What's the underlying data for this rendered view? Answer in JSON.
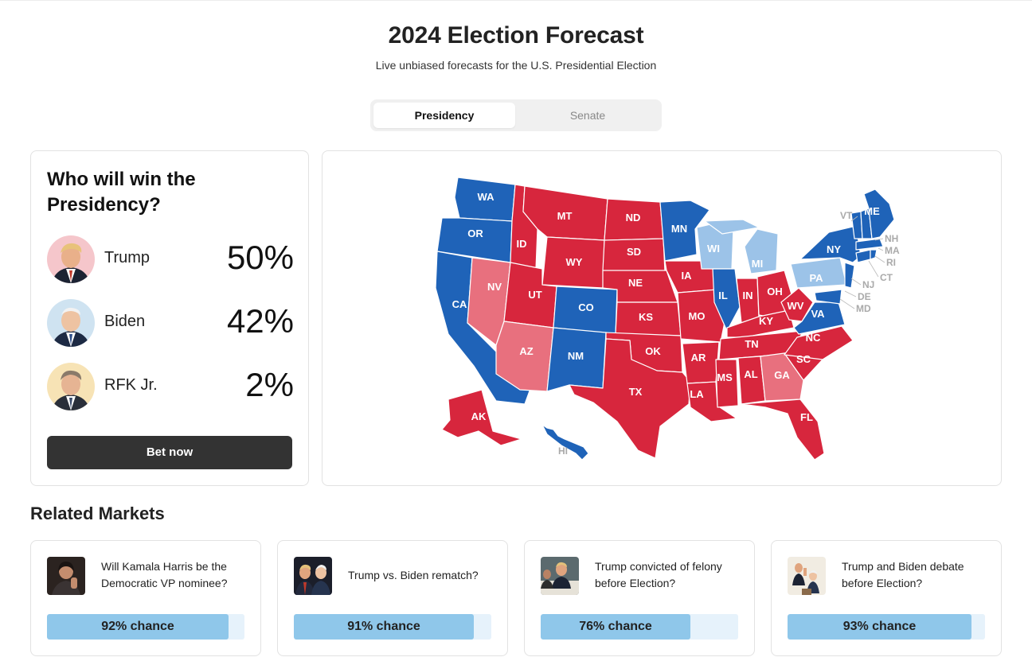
{
  "header": {
    "title": "2024 Election Forecast",
    "subtitle": "Live unbiased forecasts for the U.S. Presidential Election"
  },
  "tabs": [
    {
      "label": "Presidency",
      "active": true
    },
    {
      "label": "Senate",
      "active": false
    }
  ],
  "presidency": {
    "question": "Who will win the Presidency?",
    "candidates": [
      {
        "name": "Trump",
        "pct": "50%"
      },
      {
        "name": "Biden",
        "pct": "42%"
      },
      {
        "name": "RFK Jr.",
        "pct": "2%"
      }
    ],
    "bet_label": "Bet now"
  },
  "map": {
    "colors": {
      "solid_red": "#d7263d",
      "lean_red": "#e8707e",
      "solid_blue": "#1f63b8",
      "lean_blue": "#9cc3e8",
      "label_gray": "#aaaaaa"
    },
    "state_labels": [
      "WA",
      "OR",
      "CA",
      "ID",
      "NV",
      "MT",
      "WY",
      "UT",
      "AZ",
      "CO",
      "NM",
      "ND",
      "SD",
      "NE",
      "KS",
      "OK",
      "TX",
      "MN",
      "IA",
      "MO",
      "AR",
      "LA",
      "WI",
      "IL",
      "MI",
      "IN",
      "OH",
      "KY",
      "TN",
      "MS",
      "AL",
      "GA",
      "FL",
      "SC",
      "NC",
      "VA",
      "WV",
      "PA",
      "NY",
      "ME",
      "VT",
      "NH",
      "MA",
      "RI",
      "CT",
      "NJ",
      "DE",
      "MD",
      "AK",
      "HI"
    ]
  },
  "related": {
    "title": "Related Markets",
    "markets": [
      {
        "question": "Will Kamala Harris be the Democratic VP nominee?",
        "chance_label": "92% chance",
        "chance": 0.92
      },
      {
        "question": "Trump vs. Biden rematch?",
        "chance_label": "91% chance",
        "chance": 0.91
      },
      {
        "question": "Trump convicted of felony before Election?",
        "chance_label": "76% chance",
        "chance": 0.76
      },
      {
        "question": "Trump and Biden debate before Election?",
        "chance_label": "93% chance",
        "chance": 0.93
      }
    ]
  }
}
